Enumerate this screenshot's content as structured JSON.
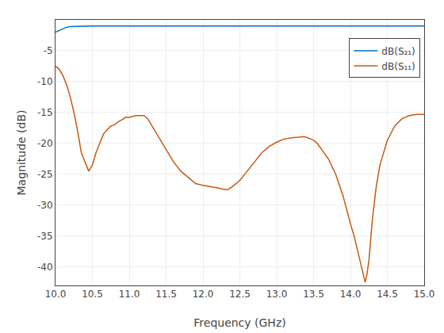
{
  "chart_data": {
    "type": "line",
    "xlabel": "Frequency (GHz)",
    "ylabel": "Magnitude (dB)",
    "xlim": [
      10,
      15
    ],
    "ylim": [
      -43,
      0
    ],
    "xticks": [
      {
        "value": 10,
        "label": "10.0"
      },
      10.5,
      {
        "value": 11,
        "label": "11.0"
      },
      11.5,
      {
        "value": 12,
        "label": "12.0"
      },
      12.5,
      {
        "value": 13,
        "label": "13.0"
      },
      13.5,
      {
        "value": 14,
        "label": "14.0"
      },
      14.5,
      {
        "value": 15,
        "label": "15.0"
      }
    ],
    "yticks": [
      -40,
      -35,
      -30,
      -25,
      -20,
      -15,
      -10,
      -5
    ],
    "grid": true,
    "legend": "upper right",
    "series": [
      {
        "name": "dB(S₂₁)",
        "color": "#0070c0",
        "x": [
          10.0,
          10.05,
          10.1,
          10.15,
          10.2,
          10.3,
          10.5,
          10.8,
          11.0,
          11.5,
          12.0,
          12.5,
          13.0,
          13.3,
          13.5,
          14.0,
          14.2,
          14.5,
          15.0
        ],
        "values": [
          -2.0,
          -1.7,
          -1.4,
          -1.2,
          -1.1,
          -1.05,
          -1.0,
          -1.0,
          -1.0,
          -1.0,
          -1.0,
          -1.0,
          -1.0,
          -1.0,
          -1.0,
          -1.0,
          -1.0,
          -1.0,
          -1.0
        ]
      },
      {
        "name": "dB(S₁₁)",
        "color": "#c55a11",
        "x": [
          10.0,
          10.05,
          10.1,
          10.15,
          10.2,
          10.25,
          10.3,
          10.35,
          10.4,
          10.45,
          10.5,
          10.55,
          10.6,
          10.65,
          10.7,
          10.75,
          10.8,
          10.85,
          10.9,
          10.95,
          11.0,
          11.05,
          11.1,
          11.15,
          11.2,
          11.25,
          11.3,
          11.4,
          11.5,
          11.6,
          11.7,
          11.8,
          11.9,
          12.0,
          12.1,
          12.2,
          12.3,
          12.35,
          12.4,
          12.5,
          12.6,
          12.7,
          12.8,
          12.9,
          13.0,
          13.1,
          13.2,
          13.3,
          13.35,
          13.4,
          13.45,
          13.5,
          13.55,
          13.6,
          13.7,
          13.8,
          13.9,
          14.0,
          14.05,
          14.1,
          14.15,
          14.18,
          14.2,
          14.22,
          14.25,
          14.3,
          14.35,
          14.4,
          14.5,
          14.6,
          14.7,
          14.8,
          14.9,
          15.0
        ],
        "values": [
          -7.5,
          -8.0,
          -9.0,
          -10.5,
          -12.5,
          -15.0,
          -18.0,
          -21.5,
          -23.0,
          -24.5,
          -23.5,
          -21.5,
          -20.0,
          -18.5,
          -17.8,
          -17.2,
          -17.0,
          -16.5,
          -16.2,
          -15.8,
          -15.8,
          -15.6,
          -15.5,
          -15.5,
          -15.5,
          -16.0,
          -17.0,
          -19.0,
          -21.0,
          -23.0,
          -24.5,
          -25.5,
          -26.5,
          -26.8,
          -27.0,
          -27.2,
          -27.5,
          -27.4,
          -27.0,
          -26.0,
          -24.5,
          -23.0,
          -21.5,
          -20.5,
          -19.8,
          -19.3,
          -19.1,
          -19.0,
          -18.9,
          -19.0,
          -19.2,
          -19.5,
          -20.0,
          -20.8,
          -22.5,
          -25.0,
          -28.5,
          -33.0,
          -35.0,
          -37.5,
          -40.0,
          -41.5,
          -42.5,
          -41.5,
          -39.0,
          -32.0,
          -27.0,
          -23.5,
          -19.5,
          -17.2,
          -16.0,
          -15.5,
          -15.3,
          -15.3
        ]
      }
    ]
  }
}
